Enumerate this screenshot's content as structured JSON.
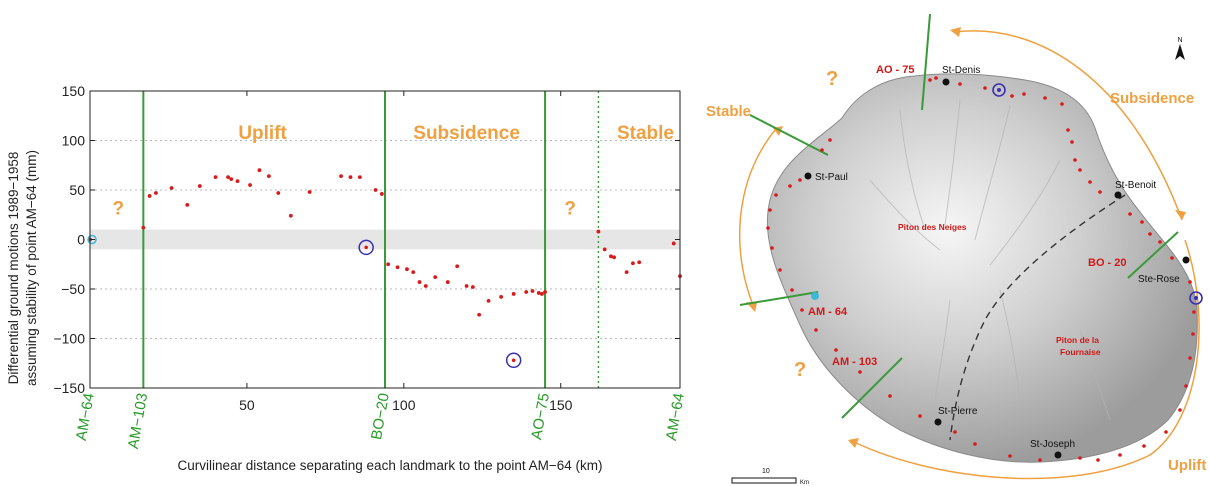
{
  "chart_data": {
    "type": "scatter",
    "xlabel": "Curvilinear distance separating each landmark to the point AM−64 (km)",
    "ylabel_line1": "Differential ground motions 1989−1958",
    "ylabel_line2": "assuming stability of point AM−64 (mm)",
    "xlim": [
      0,
      188
    ],
    "ylim": [
      -150,
      150
    ],
    "yticks": [
      150,
      100,
      50,
      0,
      -50,
      -100,
      -150
    ],
    "yticklabels": [
      "150",
      "100",
      "50",
      "0",
      "−50",
      "−100",
      "−150"
    ],
    "xticks": [
      50,
      100,
      150
    ],
    "xticklabels": [
      "50",
      "100",
      "150"
    ],
    "stability_band": [
      -10,
      10
    ],
    "grid": "horizontal dotted",
    "benchmarks": [
      {
        "label": "AM−64",
        "x": 0
      },
      {
        "label": "AM−103",
        "x": 17
      },
      {
        "label": "BO−20",
        "x": 94
      },
      {
        "label": "AO−75",
        "x": 145
      },
      {
        "label": "AM−64",
        "x": 188
      }
    ],
    "boundaries": [
      {
        "x": 17,
        "style": "solid"
      },
      {
        "x": 94,
        "style": "solid"
      },
      {
        "x": 145,
        "style": "solid"
      },
      {
        "x": 162,
        "style": "dotted"
      }
    ],
    "zones": [
      {
        "label": "Uplift",
        "x": 55
      },
      {
        "label": "Subsidence",
        "x": 120
      },
      {
        "label": "Stable",
        "x": 177
      }
    ],
    "question_marks": [
      {
        "label": "?",
        "x": 9,
        "y": 20
      },
      {
        "label": "?",
        "x": 153,
        "y": 20
      }
    ],
    "points": [
      {
        "x": 0,
        "y": 0
      },
      {
        "x": 17,
        "y": 12
      },
      {
        "x": 19,
        "y": 44
      },
      {
        "x": 21,
        "y": 47
      },
      {
        "x": 26,
        "y": 52
      },
      {
        "x": 31,
        "y": 35
      },
      {
        "x": 35,
        "y": 54
      },
      {
        "x": 40,
        "y": 63
      },
      {
        "x": 44,
        "y": 63
      },
      {
        "x": 45,
        "y": 61
      },
      {
        "x": 47,
        "y": 59
      },
      {
        "x": 51,
        "y": 55
      },
      {
        "x": 54,
        "y": 70
      },
      {
        "x": 57,
        "y": 64
      },
      {
        "x": 60,
        "y": 47
      },
      {
        "x": 64,
        "y": 24
      },
      {
        "x": 70,
        "y": 48
      },
      {
        "x": 80,
        "y": 64
      },
      {
        "x": 83,
        "y": 63
      },
      {
        "x": 86,
        "y": 63
      },
      {
        "x": 91,
        "y": 50
      },
      {
        "x": 93,
        "y": 46
      },
      {
        "x": 95,
        "y": -25
      },
      {
        "x": 98,
        "y": -28
      },
      {
        "x": 101,
        "y": -30
      },
      {
        "x": 103,
        "y": -33
      },
      {
        "x": 105,
        "y": -43
      },
      {
        "x": 107,
        "y": -47
      },
      {
        "x": 110,
        "y": -38
      },
      {
        "x": 114,
        "y": -43
      },
      {
        "x": 117,
        "y": -27
      },
      {
        "x": 120,
        "y": -47
      },
      {
        "x": 122,
        "y": -48
      },
      {
        "x": 124,
        "y": -76
      },
      {
        "x": 127,
        "y": -62
      },
      {
        "x": 131,
        "y": -58
      },
      {
        "x": 135,
        "y": -55
      },
      {
        "x": 139,
        "y": -53
      },
      {
        "x": 141,
        "y": -52
      },
      {
        "x": 143,
        "y": -54
      },
      {
        "x": 144,
        "y": -55
      },
      {
        "x": 145,
        "y": -53
      },
      {
        "x": 162,
        "y": 8
      },
      {
        "x": 164,
        "y": -10
      },
      {
        "x": 166,
        "y": -17
      },
      {
        "x": 167,
        "y": -18
      },
      {
        "x": 171,
        "y": -33
      },
      {
        "x": 173,
        "y": -24
      },
      {
        "x": 175,
        "y": -23
      },
      {
        "x": 186,
        "y": -4
      },
      {
        "x": 188,
        "y": -37
      }
    ],
    "circled_points": [
      {
        "x": 88,
        "y": -8
      },
      {
        "x": 135,
        "y": -122
      }
    ]
  },
  "map": {
    "north_label": "N",
    "arc_labels": {
      "subsidence": "Subsidence",
      "stable": "Stable",
      "uplift": "Uplift"
    },
    "question_marks": [
      "?",
      "?"
    ],
    "benchmarks": {
      "ao75": "AO - 75",
      "bo20": "BO - 20",
      "am64": "AM - 64",
      "am103": "AM - 103"
    },
    "towns": {
      "st_denis": "St-Denis",
      "st_paul": "St-Paul",
      "st_benoit": "St-Benoit",
      "ste_rose": "Ste-Rose",
      "st_pierre": "St-Pierre",
      "st_joseph": "St-Joseph"
    },
    "relief": {
      "piton_neiges": "Piton des Neiges",
      "piton_fournaise_1": "Piton de la",
      "piton_fournaise_2": "Fournaise"
    },
    "scale_bar": {
      "value": "10",
      "unit": "Km"
    }
  },
  "colors": {
    "points": "#d91a1a",
    "boundary": "#3a9a3a",
    "zone_label": "#f0a040",
    "circle": "#3b2fb0",
    "band": "#e6e6e6",
    "am64_marker": "#3fb8d8"
  }
}
